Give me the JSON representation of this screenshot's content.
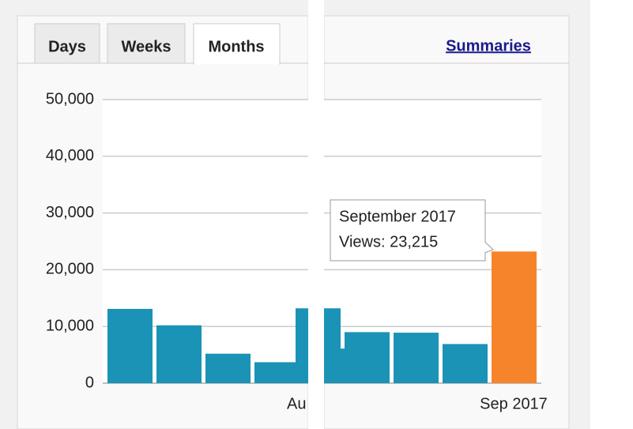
{
  "tabs": [
    "Days",
    "Weeks",
    "Months"
  ],
  "active_tab": "Months",
  "link": "Summaries",
  "chart_data": {
    "type": "bar",
    "categories": [
      null,
      null,
      null,
      null,
      "Au",
      null,
      null,
      null,
      null,
      "Sep 2017"
    ],
    "values": [
      13100,
      10200,
      5200,
      3700,
      6100,
      13200,
      9000,
      8900,
      6900,
      23215
    ],
    "color": "#1a93b6",
    "highlight_color": "#f6842b",
    "highlight_index": 9,
    "ylim": [
      0,
      50000
    ],
    "yticks": [
      0,
      {
        "value": 10000,
        "label": "10,000"
      },
      {
        "value": 20000,
        "label": "20,000"
      },
      {
        "value": 30000,
        "label": "30,000"
      },
      {
        "value": 40000,
        "label": "40,000"
      },
      {
        "value": 50000,
        "label": "50,000"
      }
    ],
    "grid": true,
    "tooltip": {
      "title": "September 2017",
      "label": "Views: 23,215"
    }
  }
}
